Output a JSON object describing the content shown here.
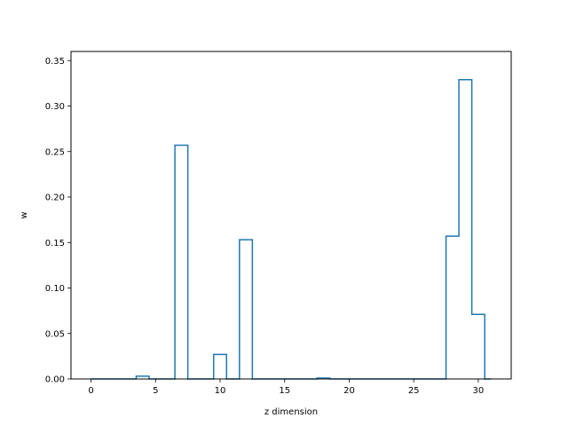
{
  "chart_data": {
    "type": "step",
    "xlabel": "z dimension",
    "ylabel": "w",
    "xlim": [
      -1.55,
      32.55
    ],
    "ylim": [
      0.0,
      0.36
    ],
    "xticks": [
      0,
      5,
      10,
      15,
      20,
      25,
      30
    ],
    "xtick_labels": [
      "0",
      "5",
      "10",
      "15",
      "20",
      "25",
      "30"
    ],
    "yticks": [
      0.0,
      0.05,
      0.1,
      0.15,
      0.2,
      0.25,
      0.3,
      0.35
    ],
    "ytick_labels": [
      "0.00",
      "0.05",
      "0.10",
      "0.15",
      "0.20",
      "0.25",
      "0.30",
      "0.35"
    ],
    "grid": false,
    "series": [
      {
        "color": "#1f77b4",
        "x": [
          0,
          1,
          2,
          3,
          4,
          5,
          6,
          7,
          8,
          9,
          10,
          11,
          12,
          13,
          14,
          15,
          16,
          17,
          18,
          19,
          20,
          21,
          22,
          23,
          24,
          25,
          26,
          27,
          28,
          29,
          30,
          31
        ],
        "values": [
          0,
          0,
          0,
          0,
          0.003,
          0,
          0,
          0.257,
          0,
          0,
          0.027,
          0,
          0.153,
          0,
          0,
          0,
          0,
          0,
          0.001,
          0,
          0,
          0,
          0,
          0,
          0,
          0,
          0,
          0,
          0.157,
          0.329,
          0.071,
          0
        ]
      }
    ]
  }
}
